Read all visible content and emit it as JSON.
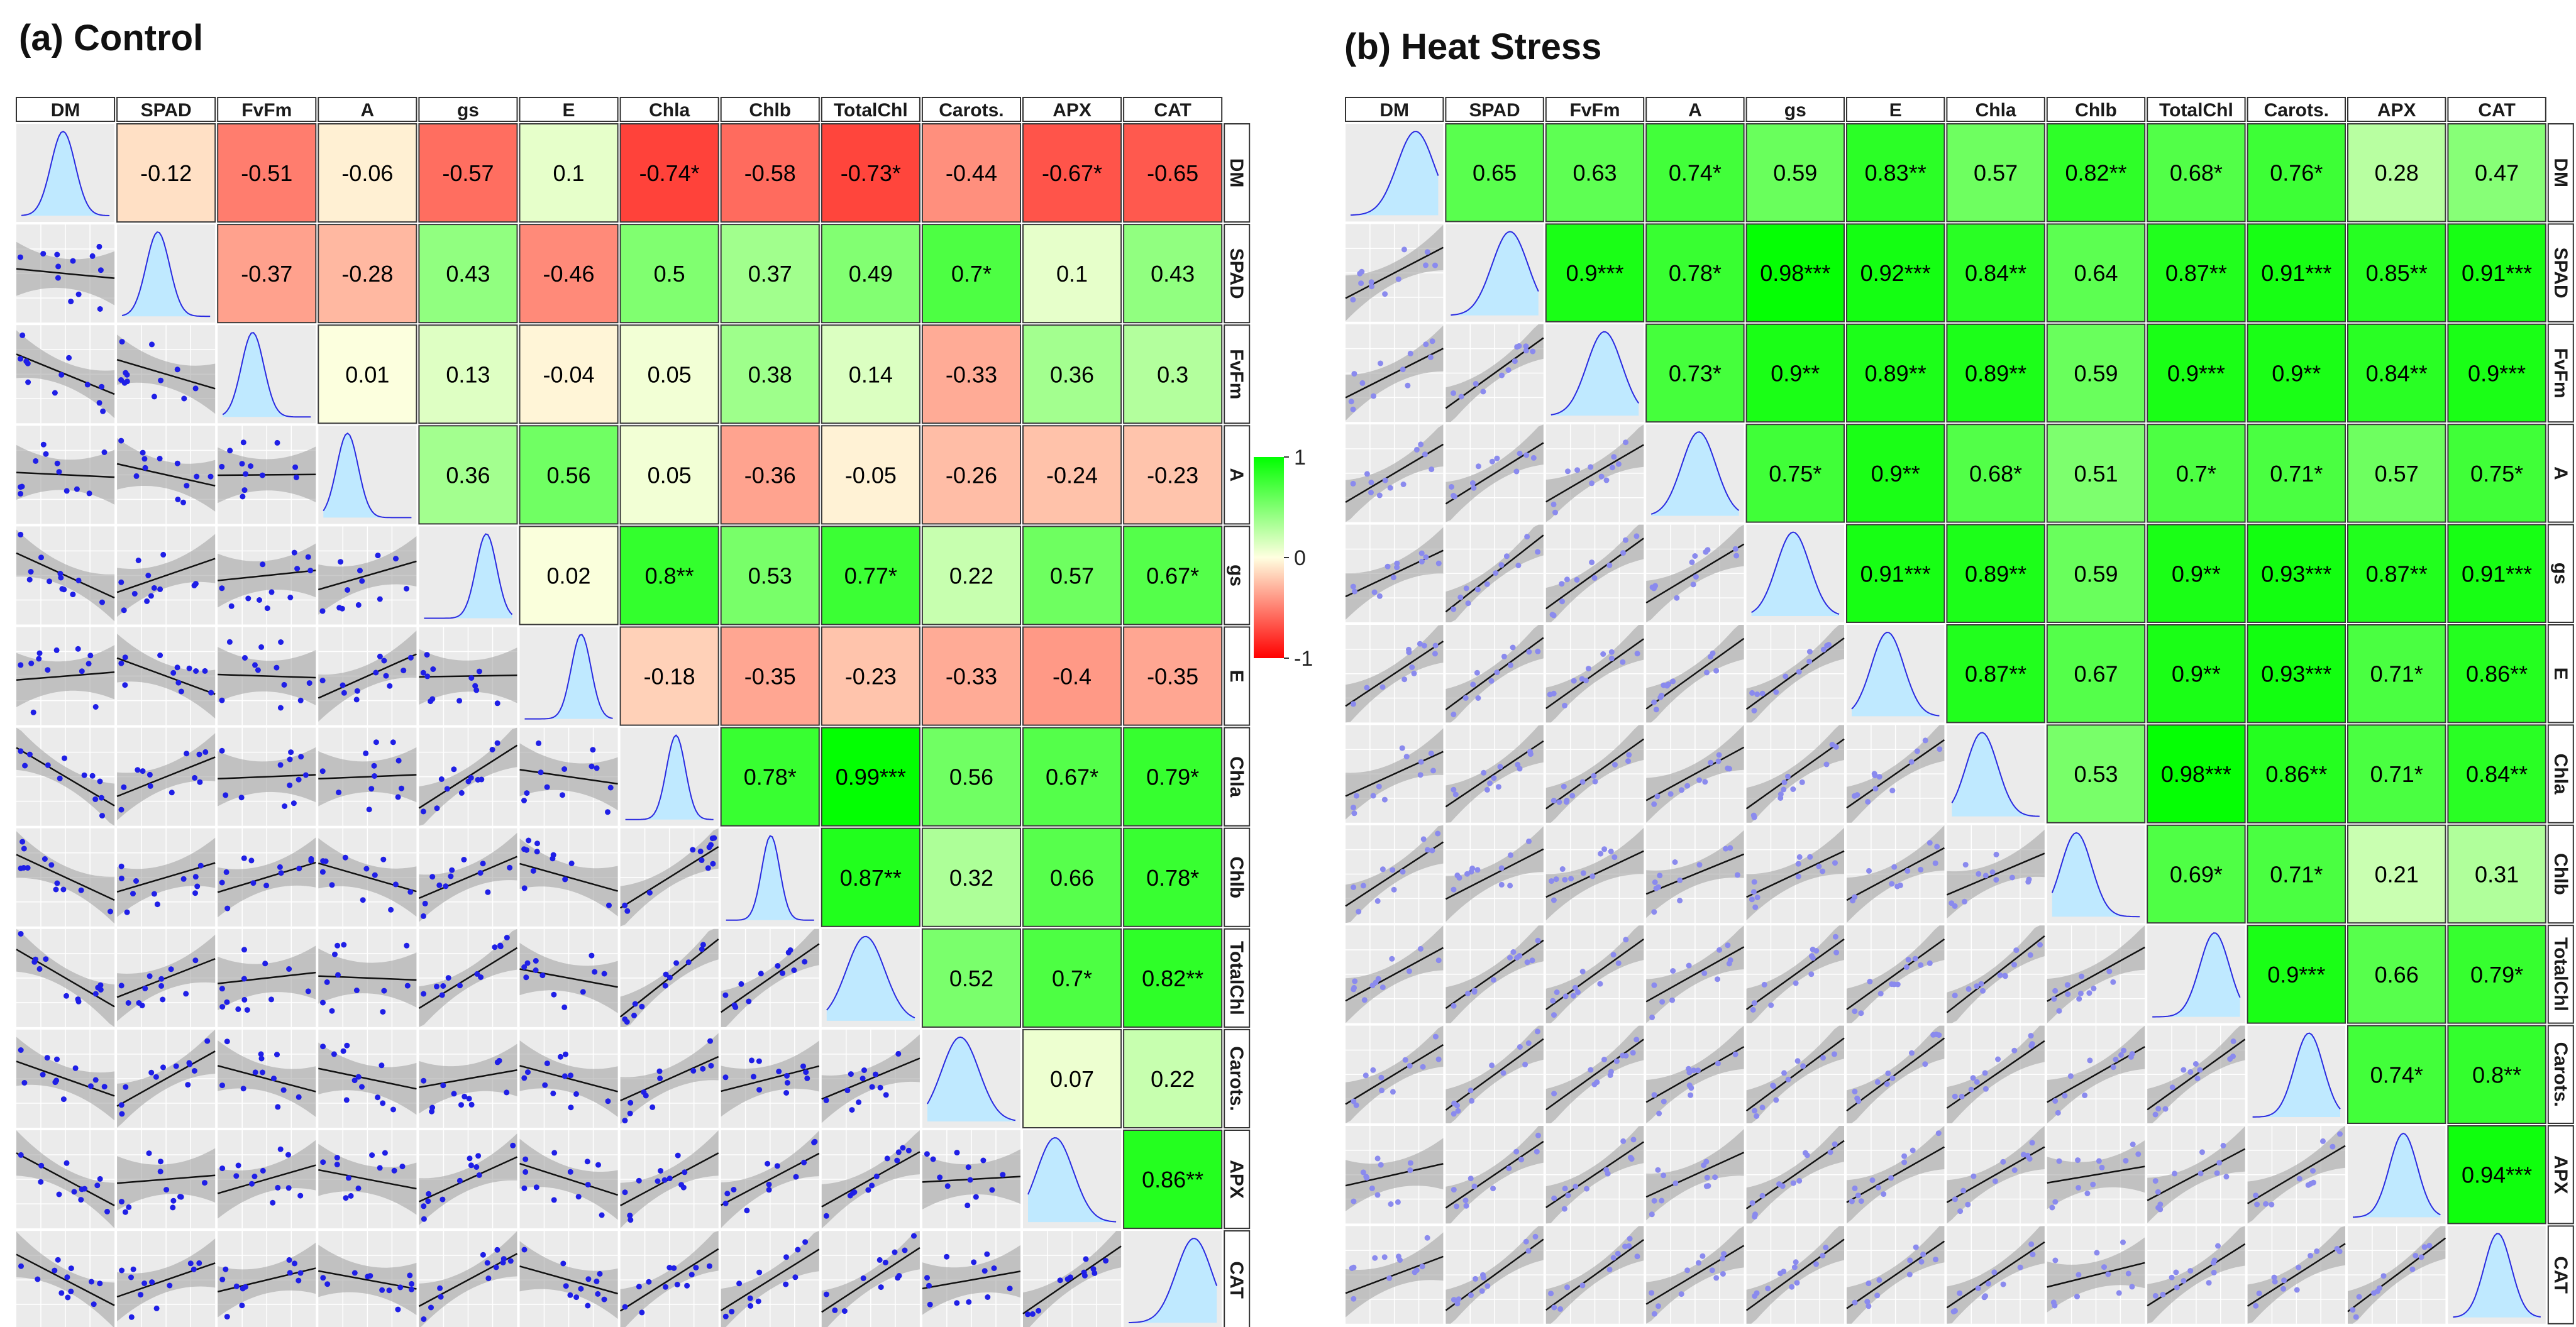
{
  "chart_data": {
    "type": "heatmap",
    "variables": [
      "DM",
      "SPAD",
      "FvFm",
      "A",
      "gs",
      "E",
      "Chla",
      "Chlb",
      "TotalChl",
      "Carots.",
      "APX",
      "CAT"
    ],
    "colorbar": {
      "range": [
        -1,
        1
      ],
      "tick_values": [
        1,
        0,
        -1
      ],
      "tick_labels": [
        "1",
        "0",
        "-1"
      ],
      "colors": {
        "low": "#ff0000",
        "mid": "#ffffe0",
        "high": "#00ff00"
      }
    },
    "panels": [
      {
        "title": "(a) Control",
        "point_color": "#1f1fe6",
        "density_fill": "#bfe9ff",
        "density_line": "#2a2ae0",
        "upper": [
          {
            "i": 0,
            "j": 1,
            "value": -0.12,
            "label": "-0.12"
          },
          {
            "i": 0,
            "j": 2,
            "value": -0.51,
            "label": "-0.51"
          },
          {
            "i": 0,
            "j": 3,
            "value": -0.06,
            "label": "-0.06"
          },
          {
            "i": 0,
            "j": 4,
            "value": -0.57,
            "label": "-0.57"
          },
          {
            "i": 0,
            "j": 5,
            "value": 0.1,
            "label": "0.1"
          },
          {
            "i": 0,
            "j": 6,
            "value": -0.74,
            "label": "-0.74*"
          },
          {
            "i": 0,
            "j": 7,
            "value": -0.58,
            "label": "-0.58"
          },
          {
            "i": 0,
            "j": 8,
            "value": -0.73,
            "label": "-0.73*"
          },
          {
            "i": 0,
            "j": 9,
            "value": -0.44,
            "label": "-0.44"
          },
          {
            "i": 0,
            "j": 10,
            "value": -0.67,
            "label": "-0.67*"
          },
          {
            "i": 0,
            "j": 11,
            "value": -0.65,
            "label": "-0.65"
          },
          {
            "i": 1,
            "j": 2,
            "value": -0.37,
            "label": "-0.37"
          },
          {
            "i": 1,
            "j": 3,
            "value": -0.28,
            "label": "-0.28"
          },
          {
            "i": 1,
            "j": 4,
            "value": 0.43,
            "label": "0.43"
          },
          {
            "i": 1,
            "j": 5,
            "value": -0.46,
            "label": "-0.46"
          },
          {
            "i": 1,
            "j": 6,
            "value": 0.5,
            "label": "0.5"
          },
          {
            "i": 1,
            "j": 7,
            "value": 0.37,
            "label": "0.37"
          },
          {
            "i": 1,
            "j": 8,
            "value": 0.49,
            "label": "0.49"
          },
          {
            "i": 1,
            "j": 9,
            "value": 0.7,
            "label": "0.7*"
          },
          {
            "i": 1,
            "j": 10,
            "value": 0.1,
            "label": "0.1"
          },
          {
            "i": 1,
            "j": 11,
            "value": 0.43,
            "label": "0.43"
          },
          {
            "i": 2,
            "j": 3,
            "value": 0.01,
            "label": "0.01"
          },
          {
            "i": 2,
            "j": 4,
            "value": 0.13,
            "label": "0.13"
          },
          {
            "i": 2,
            "j": 5,
            "value": -0.04,
            "label": "-0.04"
          },
          {
            "i": 2,
            "j": 6,
            "value": 0.05,
            "label": "0.05"
          },
          {
            "i": 2,
            "j": 7,
            "value": 0.38,
            "label": "0.38"
          },
          {
            "i": 2,
            "j": 8,
            "value": 0.14,
            "label": "0.14"
          },
          {
            "i": 2,
            "j": 9,
            "value": -0.33,
            "label": "-0.33"
          },
          {
            "i": 2,
            "j": 10,
            "value": 0.36,
            "label": "0.36"
          },
          {
            "i": 2,
            "j": 11,
            "value": 0.3,
            "label": "0.3"
          },
          {
            "i": 3,
            "j": 4,
            "value": 0.36,
            "label": "0.36"
          },
          {
            "i": 3,
            "j": 5,
            "value": 0.56,
            "label": "0.56"
          },
          {
            "i": 3,
            "j": 6,
            "value": 0.05,
            "label": "0.05"
          },
          {
            "i": 3,
            "j": 7,
            "value": -0.36,
            "label": "-0.36"
          },
          {
            "i": 3,
            "j": 8,
            "value": -0.05,
            "label": "-0.05"
          },
          {
            "i": 3,
            "j": 9,
            "value": -0.26,
            "label": "-0.26"
          },
          {
            "i": 3,
            "j": 10,
            "value": -0.24,
            "label": "-0.24"
          },
          {
            "i": 3,
            "j": 11,
            "value": -0.23,
            "label": "-0.23"
          },
          {
            "i": 4,
            "j": 5,
            "value": 0.02,
            "label": "0.02"
          },
          {
            "i": 4,
            "j": 6,
            "value": 0.8,
            "label": "0.8**"
          },
          {
            "i": 4,
            "j": 7,
            "value": 0.53,
            "label": "0.53"
          },
          {
            "i": 4,
            "j": 8,
            "value": 0.77,
            "label": "0.77*"
          },
          {
            "i": 4,
            "j": 9,
            "value": 0.22,
            "label": "0.22"
          },
          {
            "i": 4,
            "j": 10,
            "value": 0.57,
            "label": "0.57"
          },
          {
            "i": 4,
            "j": 11,
            "value": 0.67,
            "label": "0.67*"
          },
          {
            "i": 5,
            "j": 6,
            "value": -0.18,
            "label": "-0.18"
          },
          {
            "i": 5,
            "j": 7,
            "value": -0.35,
            "label": "-0.35"
          },
          {
            "i": 5,
            "j": 8,
            "value": -0.23,
            "label": "-0.23"
          },
          {
            "i": 5,
            "j": 9,
            "value": -0.33,
            "label": "-0.33"
          },
          {
            "i": 5,
            "j": 10,
            "value": -0.4,
            "label": "-0.4"
          },
          {
            "i": 5,
            "j": 11,
            "value": -0.35,
            "label": "-0.35"
          },
          {
            "i": 6,
            "j": 7,
            "value": 0.78,
            "label": "0.78*"
          },
          {
            "i": 6,
            "j": 8,
            "value": 0.99,
            "label": "0.99***"
          },
          {
            "i": 6,
            "j": 9,
            "value": 0.56,
            "label": "0.56"
          },
          {
            "i": 6,
            "j": 10,
            "value": 0.67,
            "label": "0.67*"
          },
          {
            "i": 6,
            "j": 11,
            "value": 0.79,
            "label": "0.79*"
          },
          {
            "i": 7,
            "j": 8,
            "value": 0.87,
            "label": "0.87**"
          },
          {
            "i": 7,
            "j": 9,
            "value": 0.32,
            "label": "0.32"
          },
          {
            "i": 7,
            "j": 10,
            "value": 0.66,
            "label": "0.66"
          },
          {
            "i": 7,
            "j": 11,
            "value": 0.78,
            "label": "0.78*"
          },
          {
            "i": 8,
            "j": 9,
            "value": 0.52,
            "label": "0.52"
          },
          {
            "i": 8,
            "j": 10,
            "value": 0.7,
            "label": "0.7*"
          },
          {
            "i": 8,
            "j": 11,
            "value": 0.82,
            "label": "0.82**"
          },
          {
            "i": 9,
            "j": 10,
            "value": 0.07,
            "label": "0.07"
          },
          {
            "i": 9,
            "j": 11,
            "value": 0.22,
            "label": "0.22"
          },
          {
            "i": 10,
            "j": 11,
            "value": 0.86,
            "label": "0.86**"
          }
        ]
      },
      {
        "title": "(b) Heat Stress",
        "point_color": "#8a8aee",
        "density_fill": "#bfe9ff",
        "density_line": "#2a2ae0",
        "upper": [
          {
            "i": 0,
            "j": 1,
            "value": 0.65,
            "label": "0.65"
          },
          {
            "i": 0,
            "j": 2,
            "value": 0.63,
            "label": "0.63"
          },
          {
            "i": 0,
            "j": 3,
            "value": 0.74,
            "label": "0.74*"
          },
          {
            "i": 0,
            "j": 4,
            "value": 0.59,
            "label": "0.59"
          },
          {
            "i": 0,
            "j": 5,
            "value": 0.83,
            "label": "0.83**"
          },
          {
            "i": 0,
            "j": 6,
            "value": 0.57,
            "label": "0.57"
          },
          {
            "i": 0,
            "j": 7,
            "value": 0.82,
            "label": "0.82**"
          },
          {
            "i": 0,
            "j": 8,
            "value": 0.68,
            "label": "0.68*"
          },
          {
            "i": 0,
            "j": 9,
            "value": 0.76,
            "label": "0.76*"
          },
          {
            "i": 0,
            "j": 10,
            "value": 0.28,
            "label": "0.28"
          },
          {
            "i": 0,
            "j": 11,
            "value": 0.47,
            "label": "0.47"
          },
          {
            "i": 1,
            "j": 2,
            "value": 0.9,
            "label": "0.9***"
          },
          {
            "i": 1,
            "j": 3,
            "value": 0.78,
            "label": "0.78*"
          },
          {
            "i": 1,
            "j": 4,
            "value": 0.98,
            "label": "0.98***"
          },
          {
            "i": 1,
            "j": 5,
            "value": 0.92,
            "label": "0.92***"
          },
          {
            "i": 1,
            "j": 6,
            "value": 0.84,
            "label": "0.84**"
          },
          {
            "i": 1,
            "j": 7,
            "value": 0.64,
            "label": "0.64"
          },
          {
            "i": 1,
            "j": 8,
            "value": 0.87,
            "label": "0.87**"
          },
          {
            "i": 1,
            "j": 9,
            "value": 0.91,
            "label": "0.91***"
          },
          {
            "i": 1,
            "j": 10,
            "value": 0.85,
            "label": "0.85**"
          },
          {
            "i": 1,
            "j": 11,
            "value": 0.91,
            "label": "0.91***"
          },
          {
            "i": 2,
            "j": 3,
            "value": 0.73,
            "label": "0.73*"
          },
          {
            "i": 2,
            "j": 4,
            "value": 0.9,
            "label": "0.9**"
          },
          {
            "i": 2,
            "j": 5,
            "value": 0.89,
            "label": "0.89**"
          },
          {
            "i": 2,
            "j": 6,
            "value": 0.89,
            "label": "0.89**"
          },
          {
            "i": 2,
            "j": 7,
            "value": 0.59,
            "label": "0.59"
          },
          {
            "i": 2,
            "j": 8,
            "value": 0.9,
            "label": "0.9***"
          },
          {
            "i": 2,
            "j": 9,
            "value": 0.9,
            "label": "0.9**"
          },
          {
            "i": 2,
            "j": 10,
            "value": 0.84,
            "label": "0.84**"
          },
          {
            "i": 2,
            "j": 11,
            "value": 0.9,
            "label": "0.9***"
          },
          {
            "i": 3,
            "j": 4,
            "value": 0.75,
            "label": "0.75*"
          },
          {
            "i": 3,
            "j": 5,
            "value": 0.9,
            "label": "0.9**"
          },
          {
            "i": 3,
            "j": 6,
            "value": 0.68,
            "label": "0.68*"
          },
          {
            "i": 3,
            "j": 7,
            "value": 0.51,
            "label": "0.51"
          },
          {
            "i": 3,
            "j": 8,
            "value": 0.7,
            "label": "0.7*"
          },
          {
            "i": 3,
            "j": 9,
            "value": 0.71,
            "label": "0.71*"
          },
          {
            "i": 3,
            "j": 10,
            "value": 0.57,
            "label": "0.57"
          },
          {
            "i": 3,
            "j": 11,
            "value": 0.75,
            "label": "0.75*"
          },
          {
            "i": 4,
            "j": 5,
            "value": 0.91,
            "label": "0.91***"
          },
          {
            "i": 4,
            "j": 6,
            "value": 0.89,
            "label": "0.89**"
          },
          {
            "i": 4,
            "j": 7,
            "value": 0.59,
            "label": "0.59"
          },
          {
            "i": 4,
            "j": 8,
            "value": 0.9,
            "label": "0.9**"
          },
          {
            "i": 4,
            "j": 9,
            "value": 0.93,
            "label": "0.93***"
          },
          {
            "i": 4,
            "j": 10,
            "value": 0.87,
            "label": "0.87**"
          },
          {
            "i": 4,
            "j": 11,
            "value": 0.91,
            "label": "0.91***"
          },
          {
            "i": 5,
            "j": 6,
            "value": 0.87,
            "label": "0.87**"
          },
          {
            "i": 5,
            "j": 7,
            "value": 0.67,
            "label": "0.67"
          },
          {
            "i": 5,
            "j": 8,
            "value": 0.9,
            "label": "0.9**"
          },
          {
            "i": 5,
            "j": 9,
            "value": 0.93,
            "label": "0.93***"
          },
          {
            "i": 5,
            "j": 10,
            "value": 0.71,
            "label": "0.71*"
          },
          {
            "i": 5,
            "j": 11,
            "value": 0.86,
            "label": "0.86**"
          },
          {
            "i": 6,
            "j": 7,
            "value": 0.53,
            "label": "0.53"
          },
          {
            "i": 6,
            "j": 8,
            "value": 0.98,
            "label": "0.98***"
          },
          {
            "i": 6,
            "j": 9,
            "value": 0.86,
            "label": "0.86**"
          },
          {
            "i": 6,
            "j": 10,
            "value": 0.71,
            "label": "0.71*"
          },
          {
            "i": 6,
            "j": 11,
            "value": 0.84,
            "label": "0.84**"
          },
          {
            "i": 7,
            "j": 8,
            "value": 0.69,
            "label": "0.69*"
          },
          {
            "i": 7,
            "j": 9,
            "value": 0.71,
            "label": "0.71*"
          },
          {
            "i": 7,
            "j": 10,
            "value": 0.21,
            "label": "0.21"
          },
          {
            "i": 7,
            "j": 11,
            "value": 0.31,
            "label": "0.31"
          },
          {
            "i": 8,
            "j": 9,
            "value": 0.9,
            "label": "0.9***"
          },
          {
            "i": 8,
            "j": 10,
            "value": 0.66,
            "label": "0.66"
          },
          {
            "i": 8,
            "j": 11,
            "value": 0.79,
            "label": "0.79*"
          },
          {
            "i": 9,
            "j": 10,
            "value": 0.74,
            "label": "0.74*"
          },
          {
            "i": 9,
            "j": 11,
            "value": 0.8,
            "label": "0.8**"
          },
          {
            "i": 10,
            "j": 11,
            "value": 0.94,
            "label": "0.94***"
          }
        ]
      }
    ]
  }
}
